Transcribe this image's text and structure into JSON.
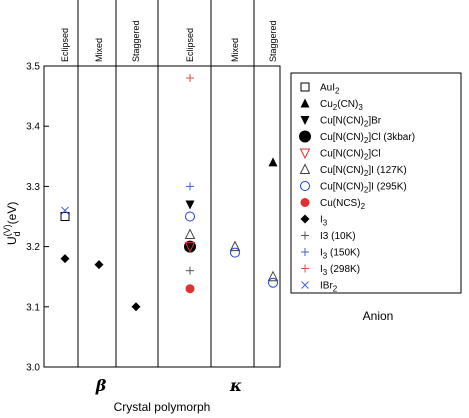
{
  "chart_data": {
    "type": "scatter",
    "title": "",
    "xlabel": "Crystal polymorph",
    "ylabel": "U_d^(V)(eV)",
    "ylim": [
      3.0,
      3.5
    ],
    "yticks": [
      "3.0",
      "3.1",
      "3.2",
      "3.3",
      "3.4",
      "3.5"
    ],
    "grid": false,
    "polymorph_labels": [
      "β",
      "κ"
    ],
    "group_labels": [
      "Eclipsed",
      "Mixed",
      "Staggered",
      "Eclipsed",
      "Mixed",
      "Staggered"
    ],
    "legend_title": "Anion",
    "legend_position": "right",
    "series": [
      {
        "name": "AuI2",
        "marker": "square-open",
        "color": "#000000",
        "points": [
          {
            "group": 0,
            "y": 3.25
          }
        ]
      },
      {
        "name": "Cu2(CN)3",
        "marker": "triangle-up-filled",
        "color": "#000000",
        "points": [
          {
            "group": 5,
            "y": 3.34
          }
        ]
      },
      {
        "name": "Cu[N(CN)2]Br",
        "marker": "triangle-down-filled",
        "color": "#000000",
        "points": [
          {
            "group": 3,
            "y": 3.27
          }
        ]
      },
      {
        "name": "Cu[N(CN)2]Cl (3kbar)",
        "marker": "circle-filled-large",
        "color": "#000000",
        "points": [
          {
            "group": 3,
            "y": 3.2
          }
        ]
      },
      {
        "name": "Cu[N(CN)2]Cl",
        "marker": "triangle-down-open",
        "color": "#e03030",
        "points": [
          {
            "group": 3,
            "y": 3.2
          }
        ]
      },
      {
        "name": "Cu[N(CN)2]I (127K)",
        "marker": "triangle-up-open",
        "color": "#444444",
        "points": [
          {
            "group": 3,
            "y": 3.22
          },
          {
            "group": 4,
            "y": 3.2
          },
          {
            "group": 5,
            "y": 3.15
          }
        ]
      },
      {
        "name": "Cu[N(CN)2]I (295K)",
        "marker": "circle-open",
        "color": "#2040d0",
        "points": [
          {
            "group": 3,
            "y": 3.25
          },
          {
            "group": 4,
            "y": 3.19
          },
          {
            "group": 5,
            "y": 3.14
          }
        ]
      },
      {
        "name": "Cu(NCS)2",
        "marker": "circle-filled",
        "color": "#e03030",
        "points": [
          {
            "group": 3,
            "y": 3.13
          }
        ]
      },
      {
        "name": "I3",
        "marker": "diamond-filled",
        "color": "#000000",
        "points": [
          {
            "group": 0,
            "y": 3.18
          },
          {
            "group": 1,
            "y": 3.17
          },
          {
            "group": 2,
            "y": 3.1
          }
        ]
      },
      {
        "name": "I3 (10K)",
        "marker": "plus",
        "color": "#555555",
        "points": [
          {
            "group": 3,
            "y": 3.16
          }
        ]
      },
      {
        "name": "I3 (150K)",
        "marker": "plus",
        "color": "#4060e0",
        "points": [
          {
            "group": 3,
            "y": 3.3
          }
        ]
      },
      {
        "name": "I3 (298K)",
        "marker": "plus",
        "color": "#e05040",
        "points": [
          {
            "group": 3,
            "y": 3.48
          }
        ]
      },
      {
        "name": "IBr2",
        "marker": "cross",
        "color": "#4060e0",
        "points": [
          {
            "group": 0,
            "y": 3.26
          }
        ]
      }
    ]
  }
}
